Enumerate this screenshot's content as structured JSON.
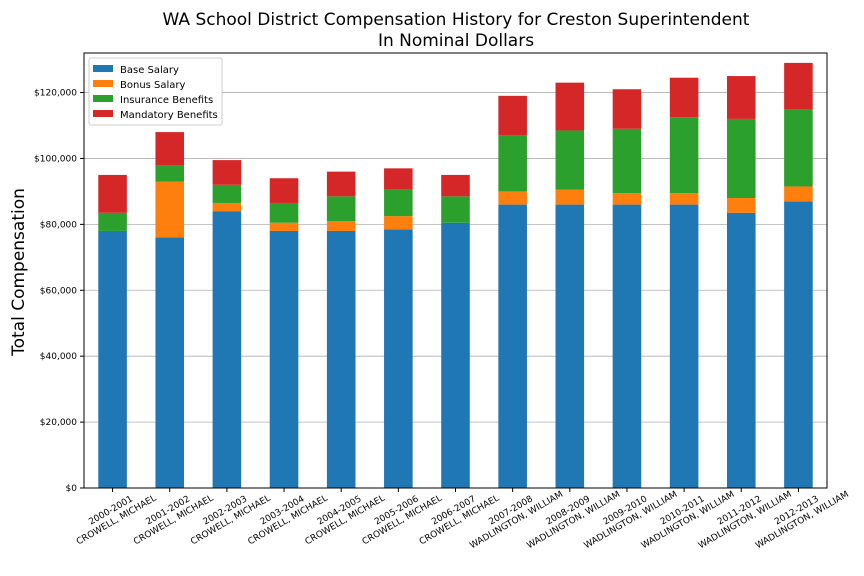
{
  "chart_data": {
    "type": "bar",
    "stacked": true,
    "title": "WA School District Compensation History for Creston Superintendent",
    "subtitle": "In Nominal Dollars",
    "xlabel": "",
    "ylabel": "Total Compensation",
    "ylim": [
      0,
      132000
    ],
    "yticks": [
      0,
      20000,
      40000,
      60000,
      80000,
      100000,
      120000
    ],
    "ytick_labels": [
      "$0",
      "$20,000",
      "$40,000",
      "$60,000",
      "$80,000",
      "$100,000",
      "$120,000"
    ],
    "grid": "horizontal",
    "legend_position": "top-left",
    "categories": [
      [
        "2000-2001",
        "CROWELL, MICHAEL"
      ],
      [
        "2001-2002",
        "CROWELL, MICHAEL"
      ],
      [
        "2002-2003",
        "CROWELL, MICHAEL"
      ],
      [
        "2003-2004",
        "CROWELL, MICHAEL"
      ],
      [
        "2004-2005",
        "CROWELL, MICHAEL"
      ],
      [
        "2005-2006",
        "CROWELL, MICHAEL"
      ],
      [
        "2006-2007",
        "CROWELL, MICHAEL"
      ],
      [
        "2007-2008",
        "WADLINGTON, WILLIAM"
      ],
      [
        "2008-2009",
        "WADLINGTON, WILLIAM"
      ],
      [
        "2009-2010",
        "WADLINGTON, WILLIAM"
      ],
      [
        "2010-2011",
        "WADLINGTON, WILLIAM"
      ],
      [
        "2011-2012",
        "WADLINGTON, WILLIAM"
      ],
      [
        "2012-2013",
        "WADLINGTON, WILLIAM"
      ]
    ],
    "series": [
      {
        "name": "Base Salary",
        "color": "#1f77b4",
        "values": [
          78000,
          76000,
          84000,
          78000,
          78000,
          78500,
          80500,
          86000,
          86000,
          86000,
          86000,
          83500,
          87000
        ]
      },
      {
        "name": "Bonus Salary",
        "color": "#ff7f0e",
        "values": [
          0,
          17000,
          2500,
          2500,
          3000,
          4000,
          0,
          4000,
          4500,
          3500,
          3500,
          4500,
          4500
        ]
      },
      {
        "name": "Insurance Benefits",
        "color": "#2ca02c",
        "values": [
          5500,
          5000,
          5500,
          6000,
          7500,
          8000,
          8000,
          17000,
          18000,
          19500,
          23000,
          24000,
          23500
        ]
      },
      {
        "name": "Mandatory Benefits",
        "color": "#d62728",
        "values": [
          11500,
          10000,
          7500,
          7500,
          7500,
          6500,
          6500,
          12000,
          14500,
          12000,
          12000,
          13000,
          14000
        ]
      }
    ]
  }
}
